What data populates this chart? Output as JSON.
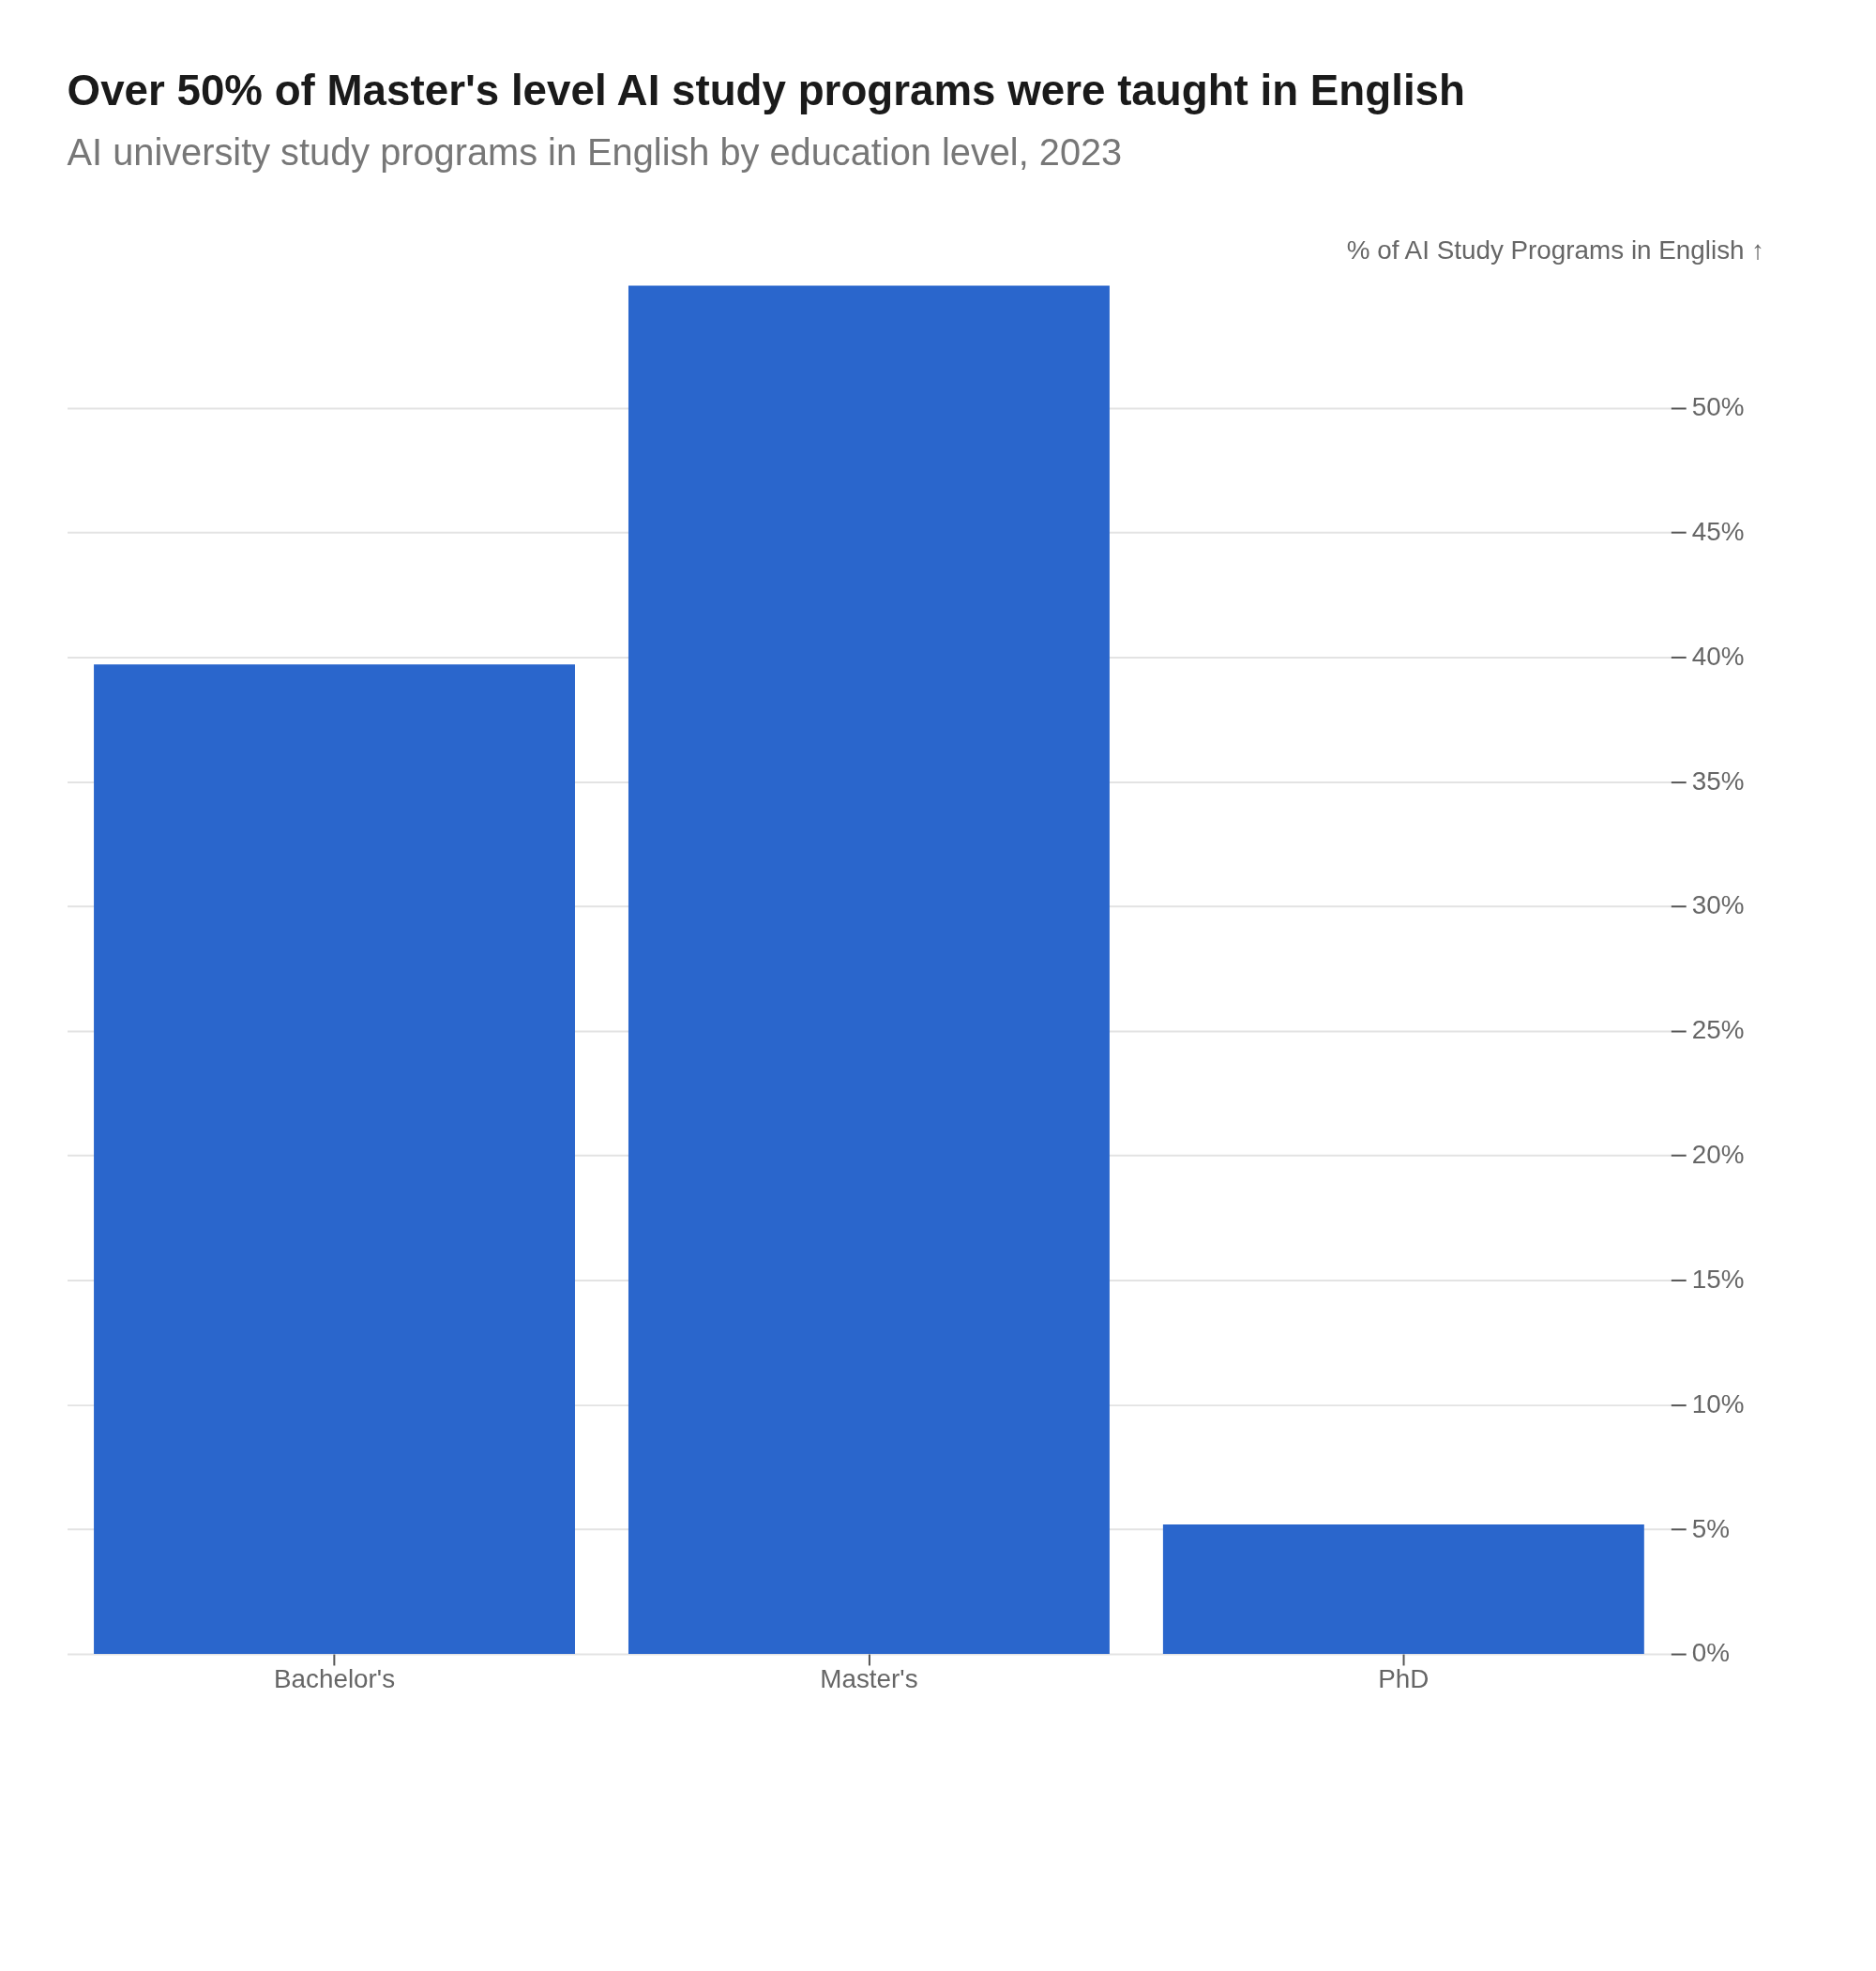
{
  "chart_data": {
    "type": "bar",
    "title": "Over 50% of Master's level AI study programs were taught in English",
    "subtitle": "AI university study programs in English by education level, 2023",
    "ylabel": "% of AI Study Programs in English ↑",
    "categories": [
      "Bachelor's",
      "Master's",
      "PhD"
    ],
    "values": [
      39.7,
      54.9,
      5.2
    ],
    "color": "#2a66cc",
    "ylim": [
      0,
      55
    ],
    "yticks": [
      {
        "value": 0,
        "label": "0%"
      },
      {
        "value": 5,
        "label": "5%"
      },
      {
        "value": 10,
        "label": "10%"
      },
      {
        "value": 15,
        "label": "15%"
      },
      {
        "value": 20,
        "label": "20%"
      },
      {
        "value": 25,
        "label": "25%"
      },
      {
        "value": 30,
        "label": "30%"
      },
      {
        "value": 35,
        "label": "35%"
      },
      {
        "value": 40,
        "label": "40%"
      },
      {
        "value": 45,
        "label": "45%"
      },
      {
        "value": 50,
        "label": "50%"
      }
    ],
    "grid": "y"
  }
}
